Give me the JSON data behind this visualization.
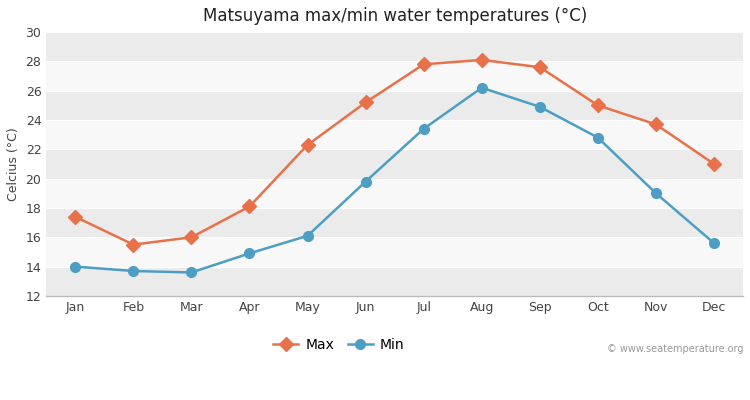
{
  "months": [
    "Jan",
    "Feb",
    "Mar",
    "Apr",
    "May",
    "Jun",
    "Jul",
    "Aug",
    "Sep",
    "Oct",
    "Nov",
    "Dec"
  ],
  "max_temps": [
    17.4,
    15.5,
    16.0,
    18.1,
    22.3,
    25.2,
    27.8,
    28.1,
    27.6,
    25.0,
    23.7,
    21.0
  ],
  "min_temps": [
    14.0,
    13.7,
    13.6,
    14.9,
    16.1,
    19.8,
    23.4,
    26.2,
    24.9,
    22.8,
    19.0,
    15.6
  ],
  "max_color": "#e8714a",
  "min_color": "#4d9ec4",
  "fig_bg_color": "#ffffff",
  "plot_bg_color": "#f0f0f0",
  "stripe_light": "#f8f8f8",
  "stripe_dark": "#ebebeb",
  "grid_color": "#ffffff",
  "title": "Matsuyama max/min water temperatures (°C)",
  "ylabel": "Celcius (°C)",
  "ylim": [
    12,
    30
  ],
  "yticks": [
    12,
    14,
    16,
    18,
    20,
    22,
    24,
    26,
    28,
    30
  ],
  "watermark": "© www.seatemperature.org",
  "legend_max": "Max",
  "legend_min": "Min",
  "max_marker": "D",
  "min_marker": "o",
  "marker_size_max": 7,
  "marker_size_min": 7,
  "linewidth": 1.8
}
